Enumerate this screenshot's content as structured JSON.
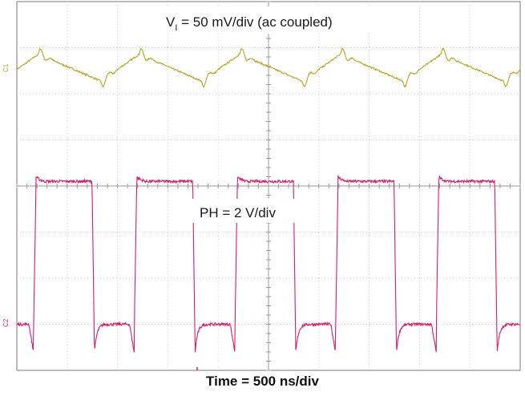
{
  "chart_data": {
    "type": "line",
    "title": "",
    "xlabel": "Time = 500 ns/div",
    "ylabel": "",
    "grid": true,
    "divisions": {
      "x": 10,
      "y": 8
    },
    "x_unit": "ns",
    "x_per_div": 500,
    "xlim": [
      0,
      5000
    ],
    "channels": [
      {
        "marker": "C1",
        "label_main": "V",
        "label_sub": "I",
        "label_rest": " = 50 mV/div (ac coupled)",
        "scale": "50 mV/div",
        "color": "#b5a422",
        "unit": "mV",
        "period_ns": 1000,
        "baseline_div": 0,
        "values_mV": {
          "peak": 28,
          "trough": -25,
          "ring_low": -45,
          "ring_high": 18
        }
      },
      {
        "marker": "C2",
        "label": "PH = 2 V/div",
        "scale": "2 V/div",
        "color": "#d81b6a",
        "unit": "V",
        "period_ns": 1000,
        "duty_cycle": 0.58,
        "baseline_div": 0,
        "values_V": {
          "low": 0,
          "high": 6.2,
          "undershoot": -0.5
        }
      }
    ]
  }
}
